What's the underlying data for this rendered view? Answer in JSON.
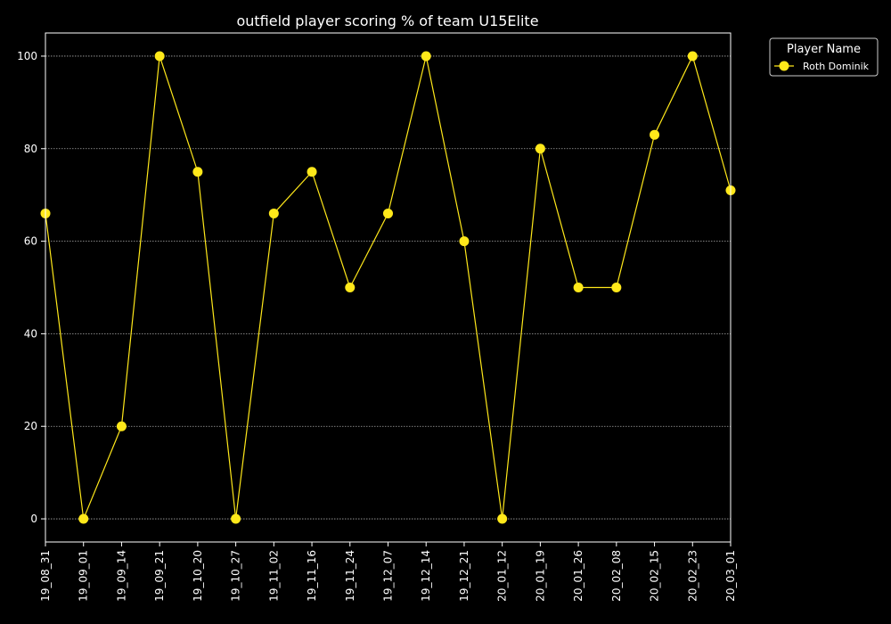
{
  "chart_data": {
    "type": "line",
    "title": "outfield player scoring % of team U15Elite",
    "xlabel": "",
    "ylabel": "",
    "categories": [
      "19_08_31",
      "19_09_01",
      "19_09_14",
      "19_09_21",
      "19_10_20",
      "19_10_27",
      "19_11_02",
      "19_11_16",
      "19_11_24",
      "19_12_07",
      "19_12_14",
      "19_12_21",
      "20_01_12",
      "20_01_19",
      "20_01_26",
      "20_02_08",
      "20_02_15",
      "20_02_23",
      "20_03_01"
    ],
    "series": [
      {
        "name": "Roth Dominik",
        "color": "#ffe81a",
        "values": [
          66,
          0,
          20,
          100,
          75,
          0,
          66,
          75,
          50,
          66,
          100,
          60,
          0,
          80,
          50,
          50,
          83,
          100,
          71
        ]
      }
    ],
    "yticks": [
      0,
      20,
      40,
      60,
      80,
      100
    ],
    "ylim": [
      -5,
      105
    ],
    "grid": "y-dotted",
    "legend": {
      "title": "Player Name",
      "placement": "outside-top-right"
    },
    "colors": {
      "background": "#000000",
      "axes": "#ffffff",
      "grid": "#aaaaaa"
    }
  }
}
